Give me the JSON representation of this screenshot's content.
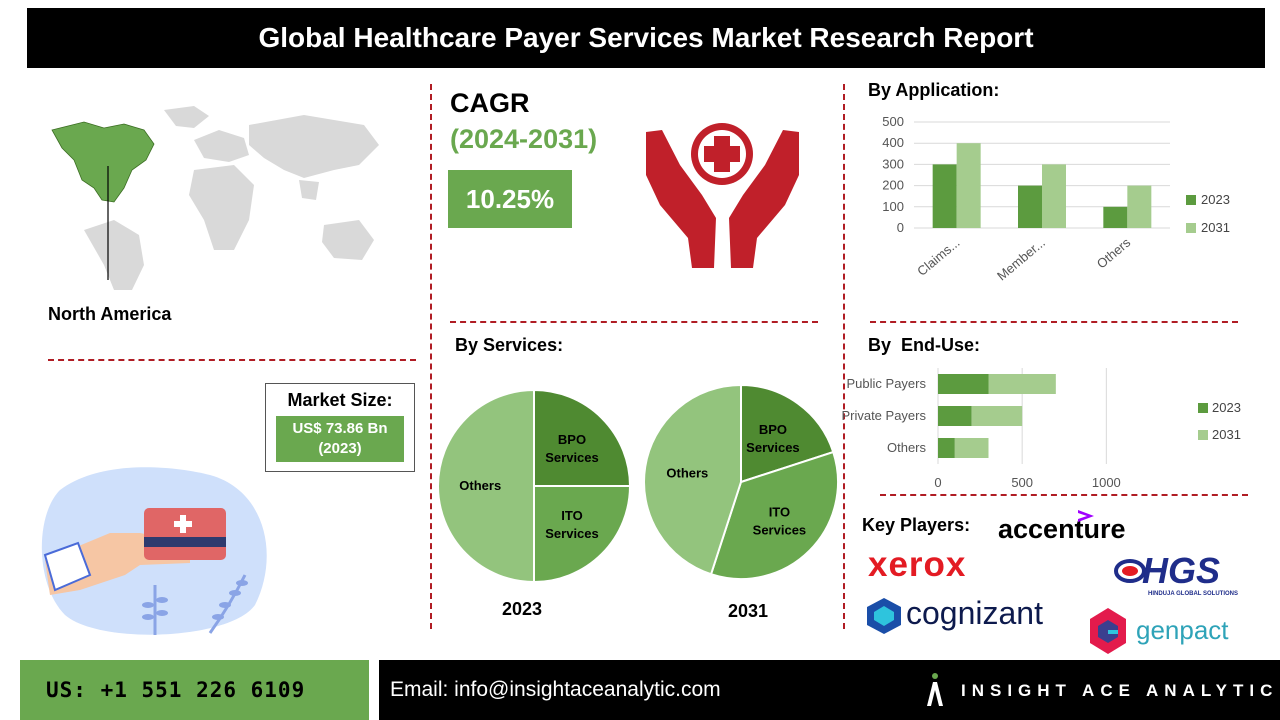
{
  "header": {
    "title": "Global Healthcare Payer Services Market Research Report"
  },
  "region": {
    "label": "North America"
  },
  "cagr": {
    "title": "CAGR",
    "period": "(2024-2031)",
    "value": "10.25%"
  },
  "market_size": {
    "title": "Market Size:",
    "value": "US$ 73.86 Bn",
    "year": "(2023)"
  },
  "sections": {
    "application": "By Application:",
    "services": "By Services:",
    "end_use": "By  End-Use:",
    "key_players": "Key Players:"
  },
  "key_players": {
    "accenture": "accenture",
    "xerox": "xerox",
    "hgs": "HGS",
    "hgs_sub": "HINDUJA GLOBAL SOLUTIONS",
    "cognizant": "cognizant",
    "genpact": "genpact"
  },
  "footer": {
    "phone": "US: +1 551 226 6109",
    "email": "Email: info@insightaceanalytic.com",
    "brand": "INSIGHT ACE ANALYTIC"
  },
  "colors": {
    "dark_green": "#5c9b3f",
    "mid_green": "#6aa84f",
    "light_green": "#a5cc8e",
    "pie_light": "#93c47d",
    "pie_dark": "#4f8a31",
    "accent_red": "#b01c24"
  },
  "chart_data": [
    {
      "type": "bar",
      "title": "By Application:",
      "categories": [
        "Claims...",
        "Member...",
        "Others"
      ],
      "series": [
        {
          "name": "2023",
          "values": [
            300,
            200,
            100
          ]
        },
        {
          "name": "2031",
          "values": [
            400,
            300,
            200
          ]
        }
      ],
      "ylim": [
        0,
        500
      ],
      "yticks": [
        "0",
        "100",
        "200",
        "300",
        "400",
        "500"
      ],
      "grid": true,
      "legend": "right"
    },
    {
      "type": "bar",
      "orientation": "horizontal-stacked",
      "title": "By  End-Use:",
      "categories": [
        "Public Payers",
        "Private Payers",
        "Others"
      ],
      "series": [
        {
          "name": "2023",
          "values": [
            300,
            200,
            100
          ]
        },
        {
          "name": "2031",
          "values": [
            400,
            300,
            200
          ]
        }
      ],
      "xlim": [
        0,
        1200
      ],
      "xticks": [
        "0",
        "500",
        "1000"
      ],
      "grid": true,
      "legend": "right"
    },
    {
      "type": "pie",
      "title": "2023",
      "slices": [
        {
          "label": "BPO Services",
          "value": 25
        },
        {
          "label": "ITO Services",
          "value": 25
        },
        {
          "label": "Others",
          "value": 50
        }
      ]
    },
    {
      "type": "pie",
      "title": "2031",
      "slices": [
        {
          "label": "BPO Services",
          "value": 20
        },
        {
          "label": "ITO Services",
          "value": 35
        },
        {
          "label": "Others",
          "value": 45
        }
      ]
    }
  ]
}
